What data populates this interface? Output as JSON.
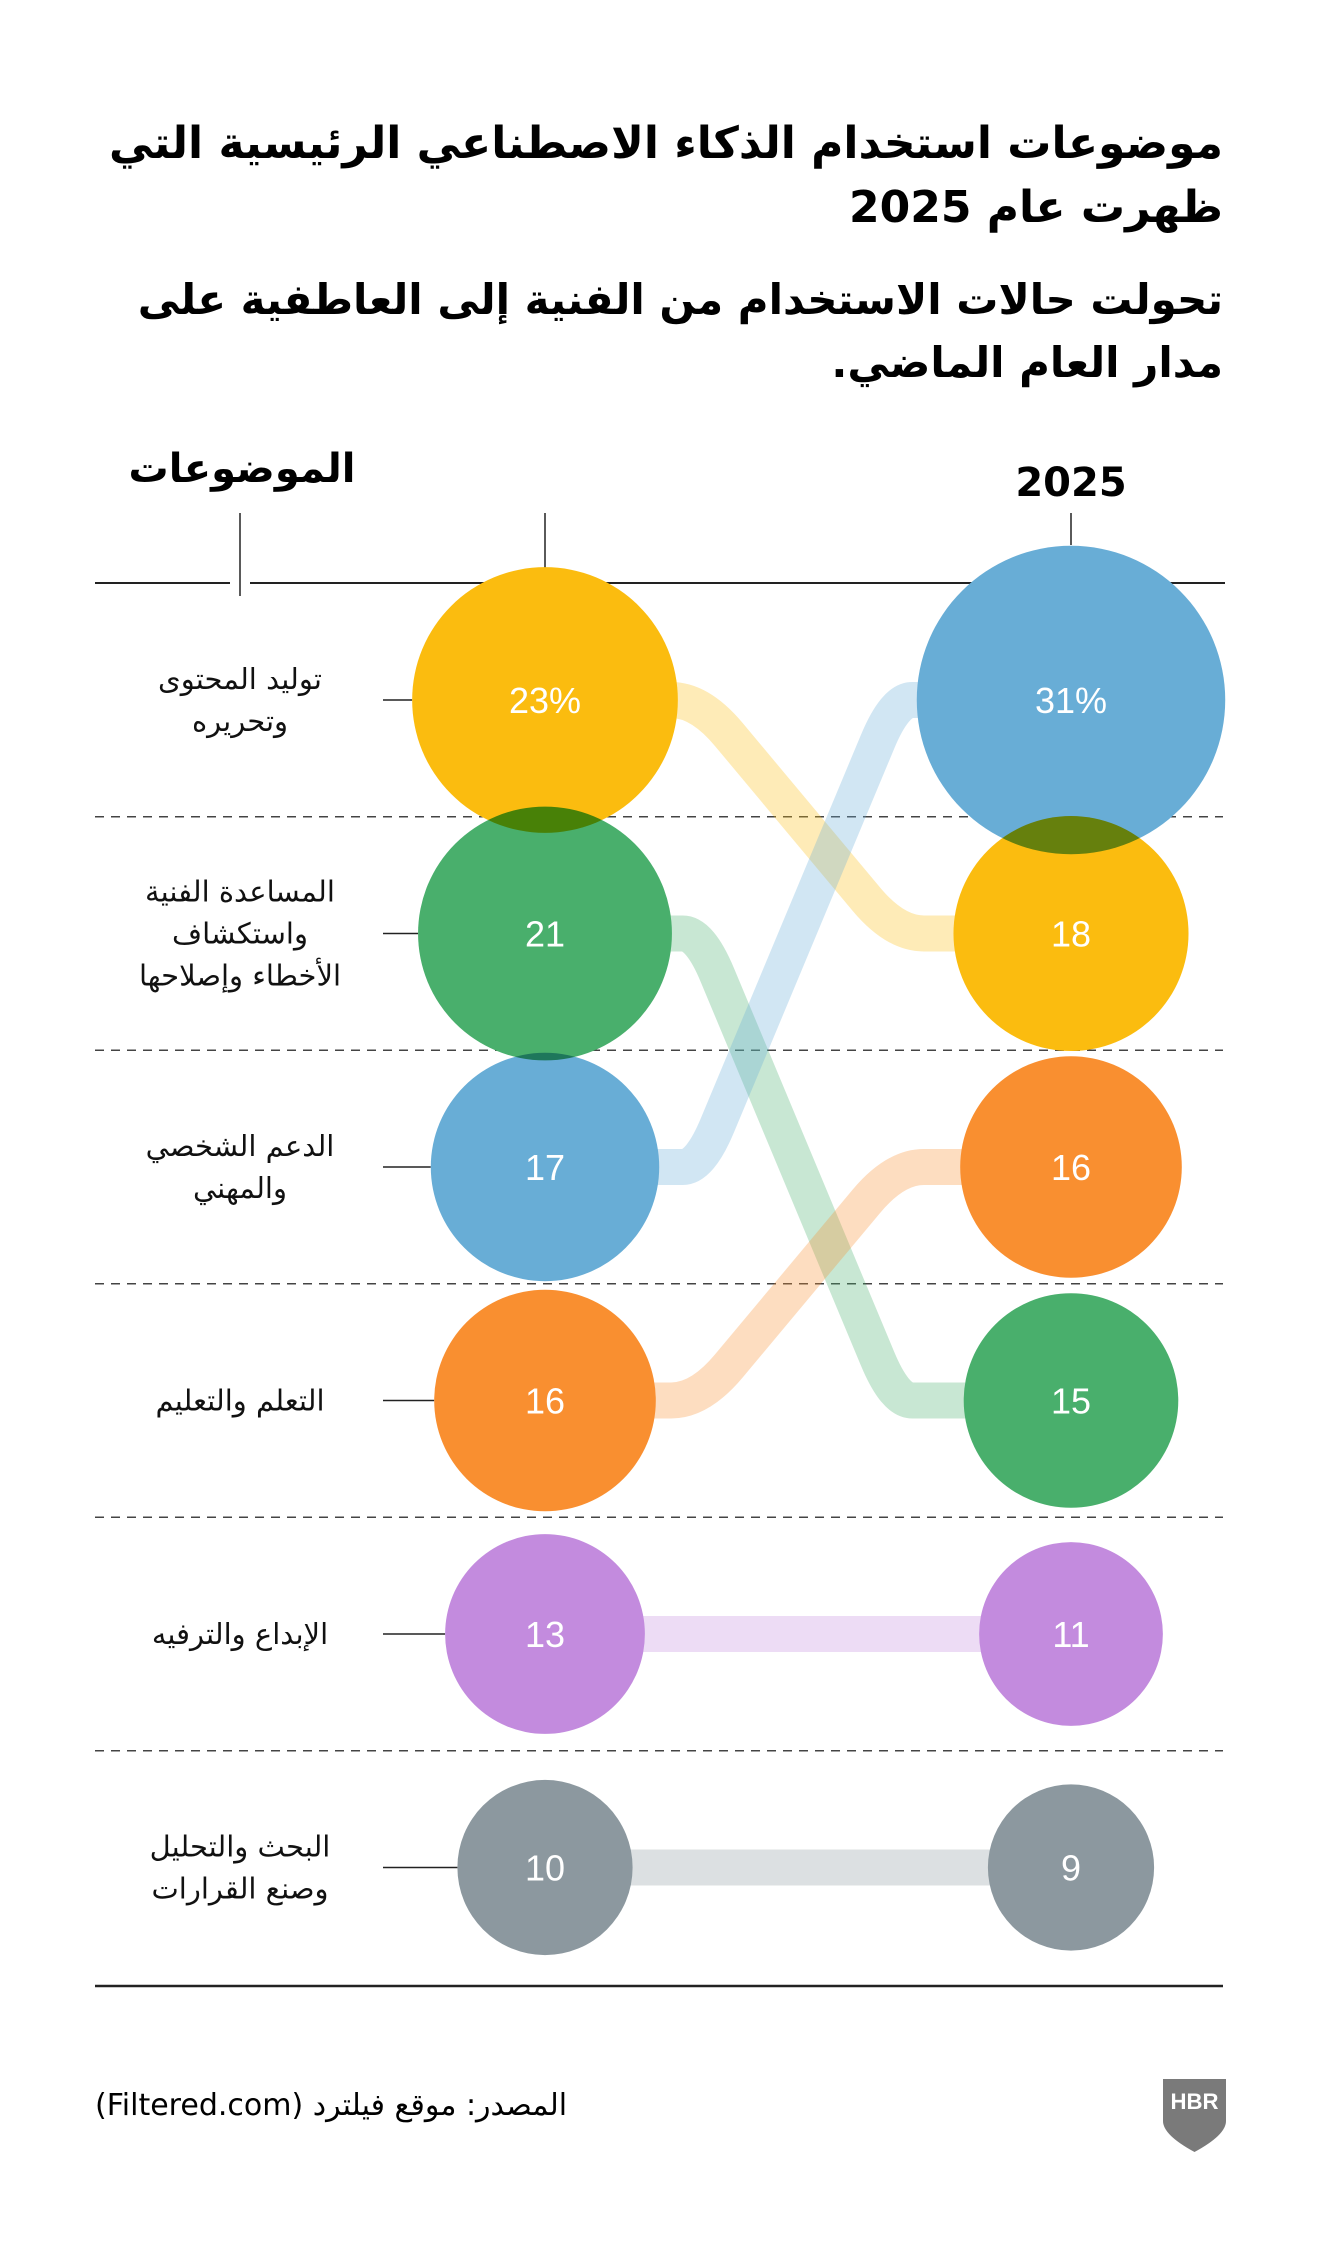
{
  "title": "موضوعات استخدام الذكاء الاصطناعي الرئيسية التي ظهرت عام 2025",
  "subtitle": "تحولت حالات الاستخدام من الفنية إلى العاطفية على مدار العام الماضي.",
  "source": "المصدر: موقع فيلترد (Filtered.com)",
  "logo": "HBR",
  "colors": {
    "content": "#FBBC0F",
    "technical": "#49AF6C",
    "personal": "#68ADD6",
    "learning": "#F98F30",
    "creativity": "#C38BDE",
    "research": "#8C989F",
    "rule": "#222222",
    "logo": "#7A7A7A"
  },
  "chart_data": {
    "type": "bump-bubble",
    "title": "موضوعات استخدام الذكاء الاصطناعي الرئيسية التي ظهرت عام 2025",
    "subtitle": "تحولت حالات الاستخدام من الفنية إلى العاطفية على مدار العام الماضي.",
    "topics_header": "الموضوعات",
    "columns": [
      "",
      "2025"
    ],
    "unit": "%",
    "topics": [
      {
        "key": "content",
        "label": [
          "توليد المحتوى",
          "وتحريره"
        ],
        "values": [
          23,
          18
        ],
        "labels": [
          "23%",
          "18"
        ],
        "rank": [
          1,
          2
        ]
      },
      {
        "key": "technical",
        "label": [
          "المساعدة الفنية",
          "واستكشاف",
          "الأخطاء وإصلاحها"
        ],
        "values": [
          21,
          15
        ],
        "labels": [
          "21",
          "15"
        ],
        "rank": [
          2,
          4
        ]
      },
      {
        "key": "personal",
        "label": [
          "الدعم الشخصي",
          "والمهني"
        ],
        "values": [
          17,
          31
        ],
        "labels": [
          "17",
          "31%"
        ],
        "rank": [
          3,
          1
        ]
      },
      {
        "key": "learning",
        "label": [
          "التعلم والتعليم"
        ],
        "values": [
          16,
          16
        ],
        "labels": [
          "16",
          "16"
        ],
        "rank": [
          4,
          3
        ]
      },
      {
        "key": "creativity",
        "label": [
          "الإبداع والترفيه"
        ],
        "values": [
          13,
          11
        ],
        "labels": [
          "13",
          "11"
        ],
        "rank": [
          5,
          5
        ]
      },
      {
        "key": "research",
        "label": [
          "البحث والتحليل",
          "وصنع القرارات"
        ],
        "values": [
          10,
          9
        ],
        "labels": [
          "10",
          "9"
        ],
        "rank": [
          6,
          6
        ]
      }
    ]
  }
}
